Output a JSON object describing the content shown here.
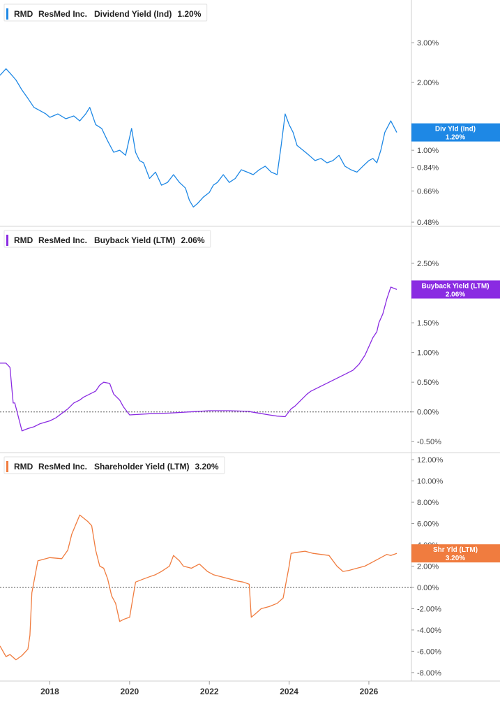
{
  "chart_data": [
    {
      "type": "line",
      "symbol": "RMD",
      "company": "ResMed Inc.",
      "metric": "Dividend Yield (Ind)",
      "last_value": "1.20%",
      "flag_label": "Div Yld (Ind)",
      "flag_value": "1.20%",
      "color": "#1e88e5",
      "scale": "log",
      "ylim": [
        0.46,
        3.8
      ],
      "yticks": [
        3.0,
        2.0,
        1.0,
        0.84,
        0.66,
        0.48
      ],
      "ytick_labels": [
        "3.00%",
        "2.00%",
        "1.00%",
        "0.84%",
        "0.66%",
        "0.48%"
      ],
      "zero_line": false,
      "last_numeric": 1.2,
      "series": [
        {
          "x": [
            2016.75,
            2016.9,
            2017.0,
            2017.15,
            2017.3,
            2017.45,
            2017.6,
            2017.75,
            2017.9,
            2018.0,
            2018.2,
            2018.4,
            2018.6,
            2018.75,
            2018.9,
            2019.0,
            2019.15,
            2019.3,
            2019.45,
            2019.6,
            2019.75,
            2019.9,
            2020.05,
            2020.15,
            2020.25,
            2020.35,
            2020.5,
            2020.65,
            2020.8,
            2020.95,
            2021.1,
            2021.25,
            2021.4,
            2021.5,
            2021.6,
            2021.7,
            2021.85,
            2022.0,
            2022.1,
            2022.2,
            2022.35,
            2022.5,
            2022.65,
            2022.8,
            2022.95,
            2023.1,
            2023.25,
            2023.4,
            2023.55,
            2023.7,
            2023.8,
            2023.9,
            2024.0,
            2024.1,
            2024.2,
            2024.35,
            2024.5,
            2024.65,
            2024.8,
            2024.95,
            2025.1,
            2025.25,
            2025.4,
            2025.55,
            2025.7,
            2025.85,
            2026.0,
            2026.1,
            2026.2,
            2026.3,
            2026.4,
            2026.55,
            2026.7
          ],
          "values": [
            2.15,
            2.3,
            2.2,
            2.05,
            1.85,
            1.7,
            1.55,
            1.5,
            1.45,
            1.4,
            1.45,
            1.38,
            1.42,
            1.35,
            1.45,
            1.55,
            1.3,
            1.25,
            1.1,
            0.98,
            1.0,
            0.95,
            1.25,
            0.98,
            0.9,
            0.88,
            0.75,
            0.8,
            0.7,
            0.72,
            0.78,
            0.72,
            0.68,
            0.6,
            0.56,
            0.58,
            0.62,
            0.65,
            0.7,
            0.72,
            0.78,
            0.72,
            0.75,
            0.82,
            0.8,
            0.78,
            0.82,
            0.85,
            0.8,
            0.78,
            1.05,
            1.45,
            1.3,
            1.2,
            1.05,
            1.0,
            0.95,
            0.9,
            0.92,
            0.88,
            0.9,
            0.95,
            0.85,
            0.82,
            0.8,
            0.85,
            0.9,
            0.92,
            0.88,
            1.0,
            1.2,
            1.35,
            1.2
          ]
        }
      ]
    },
    {
      "type": "line",
      "symbol": "RMD",
      "company": "ResMed Inc.",
      "metric": "Buyback Yield (LTM)",
      "last_value": "2.06%",
      "flag_label": "Buyback Yield (LTM)",
      "flag_value": "2.06%",
      "color": "#8a2be2",
      "scale": "linear",
      "ylim": [
        -0.65,
        2.7
      ],
      "yticks": [
        2.5,
        1.5,
        1.0,
        0.5,
        0.0,
        -0.5
      ],
      "ytick_labels": [
        "2.50%",
        "1.50%",
        "1.00%",
        "0.50%",
        "0.00%",
        "-0.50%"
      ],
      "zero_line": true,
      "last_numeric": 2.06,
      "series": [
        {
          "x": [
            2016.75,
            2016.9,
            2017.0,
            2017.08,
            2017.12,
            2017.3,
            2017.45,
            2017.6,
            2017.75,
            2017.85,
            2018.0,
            2018.15,
            2018.35,
            2018.45,
            2018.6,
            2018.75,
            2018.85,
            2019.0,
            2019.15,
            2019.25,
            2019.35,
            2019.5,
            2019.6,
            2019.75,
            2019.85,
            2020.0,
            2020.5,
            2021.0,
            2021.5,
            2022.0,
            2022.5,
            2023.0,
            2023.05,
            2023.5,
            2023.7,
            2023.9,
            2024.05,
            2024.15,
            2024.3,
            2024.45,
            2024.55,
            2024.7,
            2024.85,
            2025.0,
            2025.15,
            2025.3,
            2025.45,
            2025.6,
            2025.75,
            2025.9,
            2026.0,
            2026.1,
            2026.2,
            2026.25,
            2026.35,
            2026.45,
            2026.55,
            2026.7
          ],
          "values": [
            0.82,
            0.82,
            0.75,
            0.15,
            0.15,
            -0.32,
            -0.28,
            -0.25,
            -0.2,
            -0.18,
            -0.15,
            -0.1,
            0.0,
            0.05,
            0.15,
            0.2,
            0.25,
            0.3,
            0.35,
            0.45,
            0.5,
            0.48,
            0.3,
            0.2,
            0.08,
            -0.05,
            -0.03,
            -0.02,
            0.0,
            0.02,
            0.02,
            0.01,
            0.0,
            -0.05,
            -0.07,
            -0.08,
            0.05,
            0.1,
            0.2,
            0.3,
            0.35,
            0.4,
            0.45,
            0.5,
            0.55,
            0.6,
            0.65,
            0.7,
            0.8,
            0.95,
            1.1,
            1.25,
            1.35,
            1.5,
            1.65,
            1.9,
            2.1,
            2.06
          ]
        }
      ]
    },
    {
      "type": "line",
      "symbol": "RMD",
      "company": "ResMed Inc.",
      "metric": "Shareholder Yield (LTM)",
      "last_value": "3.20%",
      "flag_label": "Shr Yld (LTM)",
      "flag_value": "3.20%",
      "color": "#f07c3f",
      "scale": "linear",
      "ylim": [
        -8.6,
        12.4
      ],
      "yticks": [
        12,
        10,
        8,
        6,
        4,
        2,
        0,
        -2,
        -4,
        -6,
        -8
      ],
      "ytick_labels": [
        "12.00%",
        "10.00%",
        "8.00%",
        "6.00%",
        "4.00%",
        "2.00%",
        "0.00%",
        "-2.00%",
        "-4.00%",
        "-6.00%",
        "-8.00%"
      ],
      "zero_line": true,
      "last_numeric": 3.2,
      "series": [
        {
          "x": [
            2016.75,
            2016.9,
            2017.0,
            2017.15,
            2017.3,
            2017.45,
            2017.5,
            2017.55,
            2017.7,
            2018.0,
            2018.3,
            2018.45,
            2018.55,
            2018.75,
            2018.85,
            2018.95,
            2019.05,
            2019.15,
            2019.25,
            2019.35,
            2019.45,
            2019.55,
            2019.65,
            2019.75,
            2019.85,
            2020.0,
            2020.15,
            2020.35,
            2020.5,
            2020.65,
            2020.8,
            2021.0,
            2021.1,
            2021.25,
            2021.35,
            2021.55,
            2021.75,
            2021.95,
            2022.1,
            2022.3,
            2022.5,
            2022.7,
            2022.85,
            2023.0,
            2023.05,
            2023.15,
            2023.3,
            2023.5,
            2023.7,
            2023.85,
            2024.0,
            2024.05,
            2024.2,
            2024.4,
            2024.6,
            2024.8,
            2025.0,
            2025.2,
            2025.35,
            2025.5,
            2025.7,
            2025.9,
            2026.1,
            2026.3,
            2026.45,
            2026.55,
            2026.7
          ],
          "values": [
            -5.5,
            -6.5,
            -6.3,
            -6.8,
            -6.4,
            -5.8,
            -4.5,
            -0.5,
            2.5,
            2.8,
            2.7,
            3.5,
            5.0,
            6.8,
            6.5,
            6.2,
            5.8,
            3.5,
            2.0,
            1.8,
            0.8,
            -0.8,
            -1.5,
            -3.2,
            -3.0,
            -2.8,
            0.5,
            0.8,
            1.0,
            1.2,
            1.5,
            2.0,
            3.0,
            2.5,
            2.0,
            1.8,
            2.2,
            1.5,
            1.2,
            1.0,
            0.8,
            0.6,
            0.5,
            0.3,
            -2.8,
            -2.5,
            -2.0,
            -1.8,
            -1.5,
            -1.0,
            2.0,
            3.2,
            3.3,
            3.4,
            3.2,
            3.1,
            3.0,
            2.0,
            1.5,
            1.6,
            1.8,
            2.0,
            2.4,
            2.8,
            3.1,
            3.0,
            3.2
          ]
        }
      ]
    }
  ],
  "xaxis": {
    "ticks": [
      2018,
      2020,
      2022,
      2024,
      2026
    ],
    "tick_labels": [
      "2018",
      "2020",
      "2022",
      "2024",
      "2026"
    ]
  }
}
